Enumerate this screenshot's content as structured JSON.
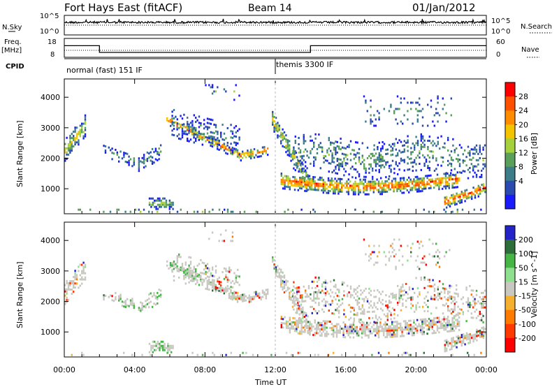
{
  "header": {
    "site": "Fort Hays East (fitACF)",
    "beam": "Beam 14",
    "date": "01/Jan/2012"
  },
  "status_panels": {
    "nsky_label": "N.Sky",
    "nsearch_label": "N.Search",
    "freq_label": "Freq.",
    "freq_unit": "[MHz]",
    "nave_label": "Nave",
    "cpid_label": "CPID",
    "noise_ticks_left": [
      "10^5",
      "10^0"
    ],
    "noise_ticks_right": [
      "10^5",
      "10^0"
    ],
    "freq_ticks": [
      "18",
      "8"
    ],
    "nave_ticks": [
      "60",
      "0"
    ],
    "cpid_segments": [
      {
        "start_hour": 0,
        "end_hour": 12,
        "label": "normal (fast) 151 IF"
      },
      {
        "start_hour": 12,
        "end_hour": 24,
        "label": "themis 3300 IF"
      }
    ],
    "freq_step": {
      "high_mhz": 14.5,
      "low_mhz": 10.5,
      "low_start_hour": 2,
      "low_end_hour": 14
    }
  },
  "chart_data": [
    {
      "type": "heatmap",
      "title": "Power",
      "ylabel": "Slant Range [km]",
      "xlabel": "Time UT",
      "x_ticks": [
        "00:00",
        "04:00",
        "08:00",
        "12:00",
        "16:00",
        "20:00",
        "00:00"
      ],
      "x_range_hours": [
        0,
        24
      ],
      "y_ticks": [
        1000,
        2000,
        3000,
        4000
      ],
      "ylim": [
        180,
        4600
      ],
      "colorbar": {
        "label": "Power [dB]",
        "ticks": [
          4,
          8,
          12,
          16,
          20,
          24,
          28
        ],
        "colors": [
          "#1a1aff",
          "#2a4bb0",
          "#3d7d8a",
          "#5aa05a",
          "#a5d23c",
          "#f5c400",
          "#ff8c00",
          "#ff5000",
          "#ff0000"
        ]
      }
    },
    {
      "type": "heatmap",
      "title": "Velocity",
      "ylabel": "Slant Range [km]",
      "xlabel": "Time UT",
      "x_ticks": [
        "00:00",
        "04:00",
        "08:00",
        "12:00",
        "16:00",
        "20:00",
        "00:00"
      ],
      "x_range_hours": [
        0,
        24
      ],
      "y_ticks": [
        1000,
        2000,
        3000,
        4000
      ],
      "ylim": [
        180,
        4600
      ],
      "colorbar": {
        "label": "Velocity [m s^-1]",
        "ticks": [
          200,
          100,
          50,
          15,
          -15,
          -50,
          -100,
          -200
        ],
        "colors": [
          "#2323c8",
          "#2e6e3a",
          "#45b545",
          "#8ee08e",
          "#c8c8c0",
          "#f5b030",
          "#ff7a00",
          "#ff3a00",
          "#ff0000"
        ]
      }
    }
  ]
}
